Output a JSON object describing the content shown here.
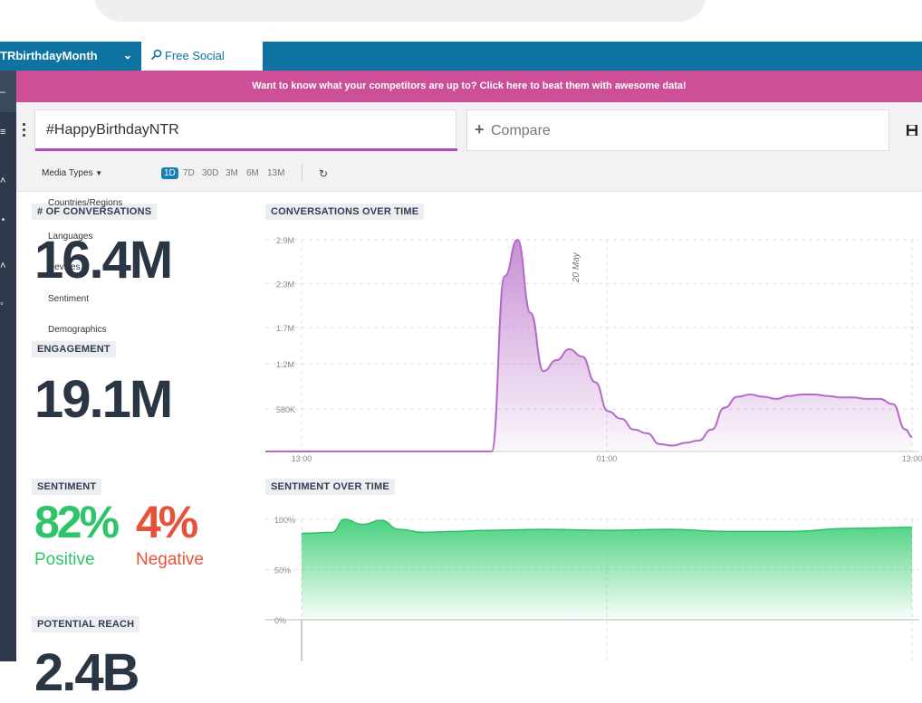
{
  "tabs": {
    "project_name": "TRbirthdayMonth",
    "free_social_search": "Free Social Search"
  },
  "banner": "Want to know what your competitors are up to? Click here to beat them with awesome data!",
  "query": {
    "value": "#HappyBirthdayNTR",
    "compare_placeholder": "Compare"
  },
  "filters": {
    "media_types": "Media Types",
    "periods": [
      "1D",
      "7D",
      "30D",
      "3M",
      "6M",
      "13M"
    ],
    "active_period": "1D",
    "dropdown_items": [
      "Countries/Regions",
      "Languages",
      "Devices",
      "Sentiment",
      "Demographics"
    ]
  },
  "metrics": {
    "conversations_label": "# OF CONVERSATIONS",
    "conversations_value": "16.4M",
    "engagement_label": "ENGAGEMENT",
    "engagement_value": "19.1M",
    "sentiment_label": "SENTIMENT",
    "positive_value": "82%",
    "positive_label": "Positive",
    "negative_value": "4%",
    "negative_label": "Negative",
    "reach_label": "POTENTIAL REACH",
    "reach_value": "2.4B"
  },
  "colors": {
    "topbar": "#0e73a0",
    "banner": "#cc4f97",
    "conversation_line": "#b56ac7",
    "sentiment_area": "#3fcf78",
    "positive": "#2fc46a",
    "negative": "#e5533a"
  },
  "chart_data": [
    {
      "type": "area",
      "title": "CONVERSATIONS OVER TIME",
      "x_ticks": [
        "13:00",
        "01:00",
        "13:00"
      ],
      "y_ticks": [
        "2.9M",
        "2.3M",
        "1.7M",
        "1.2M",
        "580K"
      ],
      "annotation": "20 May",
      "series": [
        {
          "x": [
            0,
            0.1,
            0.2,
            0.3,
            0.35,
            0.37,
            0.39,
            0.41,
            0.43,
            0.45,
            0.47,
            0.49,
            0.51,
            0.53,
            0.55,
            0.57,
            0.59,
            0.61,
            0.63,
            0.65,
            0.67,
            0.69,
            0.71,
            0.73,
            0.75,
            0.77,
            0.79,
            0.81,
            0.83,
            0.85,
            0.87,
            0.89,
            0.91,
            0.93,
            0.95,
            0.97,
            0.99,
            1.0
          ],
          "values": [
            0,
            0,
            0,
            0,
            0,
            2.4,
            2.9,
            1.9,
            1.1,
            1.25,
            1.4,
            1.3,
            0.95,
            0.55,
            0.45,
            0.3,
            0.25,
            0.1,
            0.08,
            0.12,
            0.15,
            0.3,
            0.6,
            0.75,
            0.78,
            0.75,
            0.72,
            0.76,
            0.78,
            0.78,
            0.76,
            0.74,
            0.74,
            0.72,
            0.72,
            0.65,
            0.3,
            0.2
          ],
          "unit": "M"
        }
      ]
    },
    {
      "type": "area",
      "title": "SENTIMENT OVER TIME",
      "y_ticks": [
        "100%",
        "50%",
        "0%"
      ],
      "series": [
        {
          "x": [
            0,
            0.05,
            0.07,
            0.1,
            0.13,
            0.16,
            0.2,
            0.25,
            0.3,
            0.4,
            0.5,
            0.6,
            0.7,
            0.8,
            0.9,
            1.0
          ],
          "values": [
            86,
            87,
            100,
            95,
            99,
            90,
            87,
            88,
            89,
            90,
            89,
            90,
            88,
            88,
            91,
            92
          ],
          "unit": "%"
        }
      ]
    }
  ]
}
